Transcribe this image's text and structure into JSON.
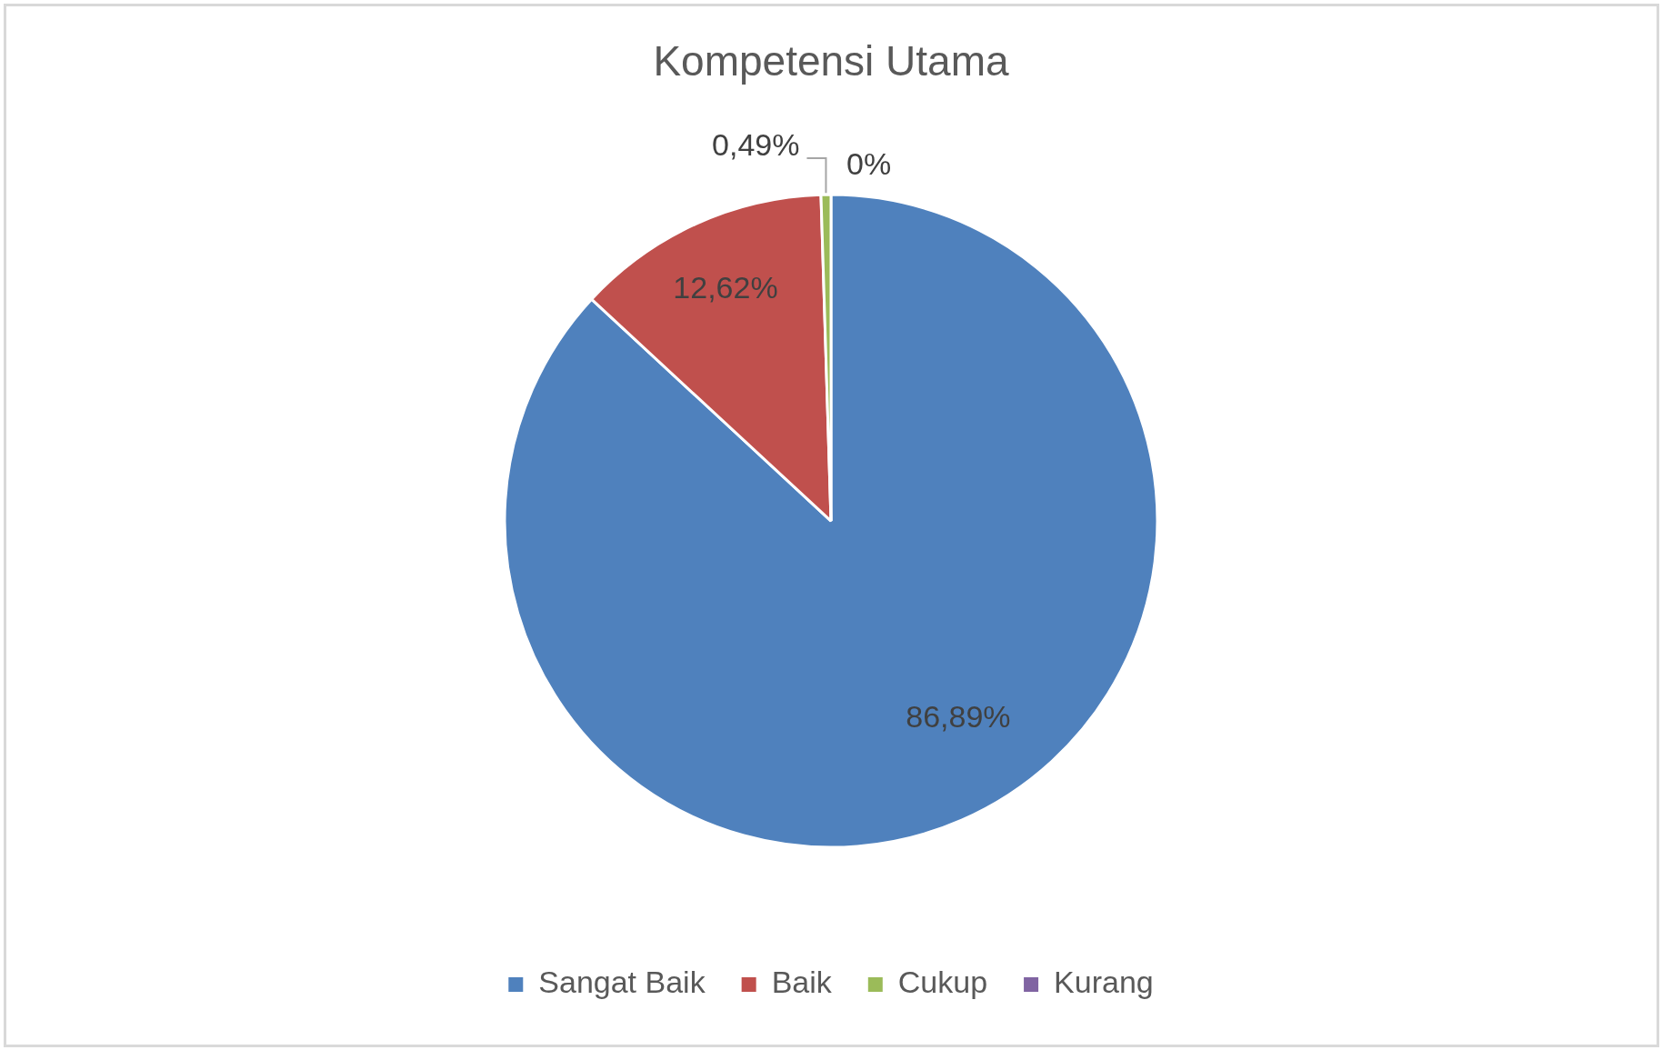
{
  "chart_data": {
    "type": "pie",
    "title": "Kompetensi Utama",
    "categories": [
      "Sangat Baik",
      "Baik",
      "Cukup",
      "Kurang"
    ],
    "values": [
      86.89,
      12.62,
      0.49,
      0
    ],
    "colors": [
      "#4f81bd",
      "#c0504d",
      "#9bbb59",
      "#8064a2"
    ],
    "value_labels": [
      "86,89%",
      "12,62%",
      "0,49%",
      "0%"
    ],
    "legend": "bottom"
  }
}
